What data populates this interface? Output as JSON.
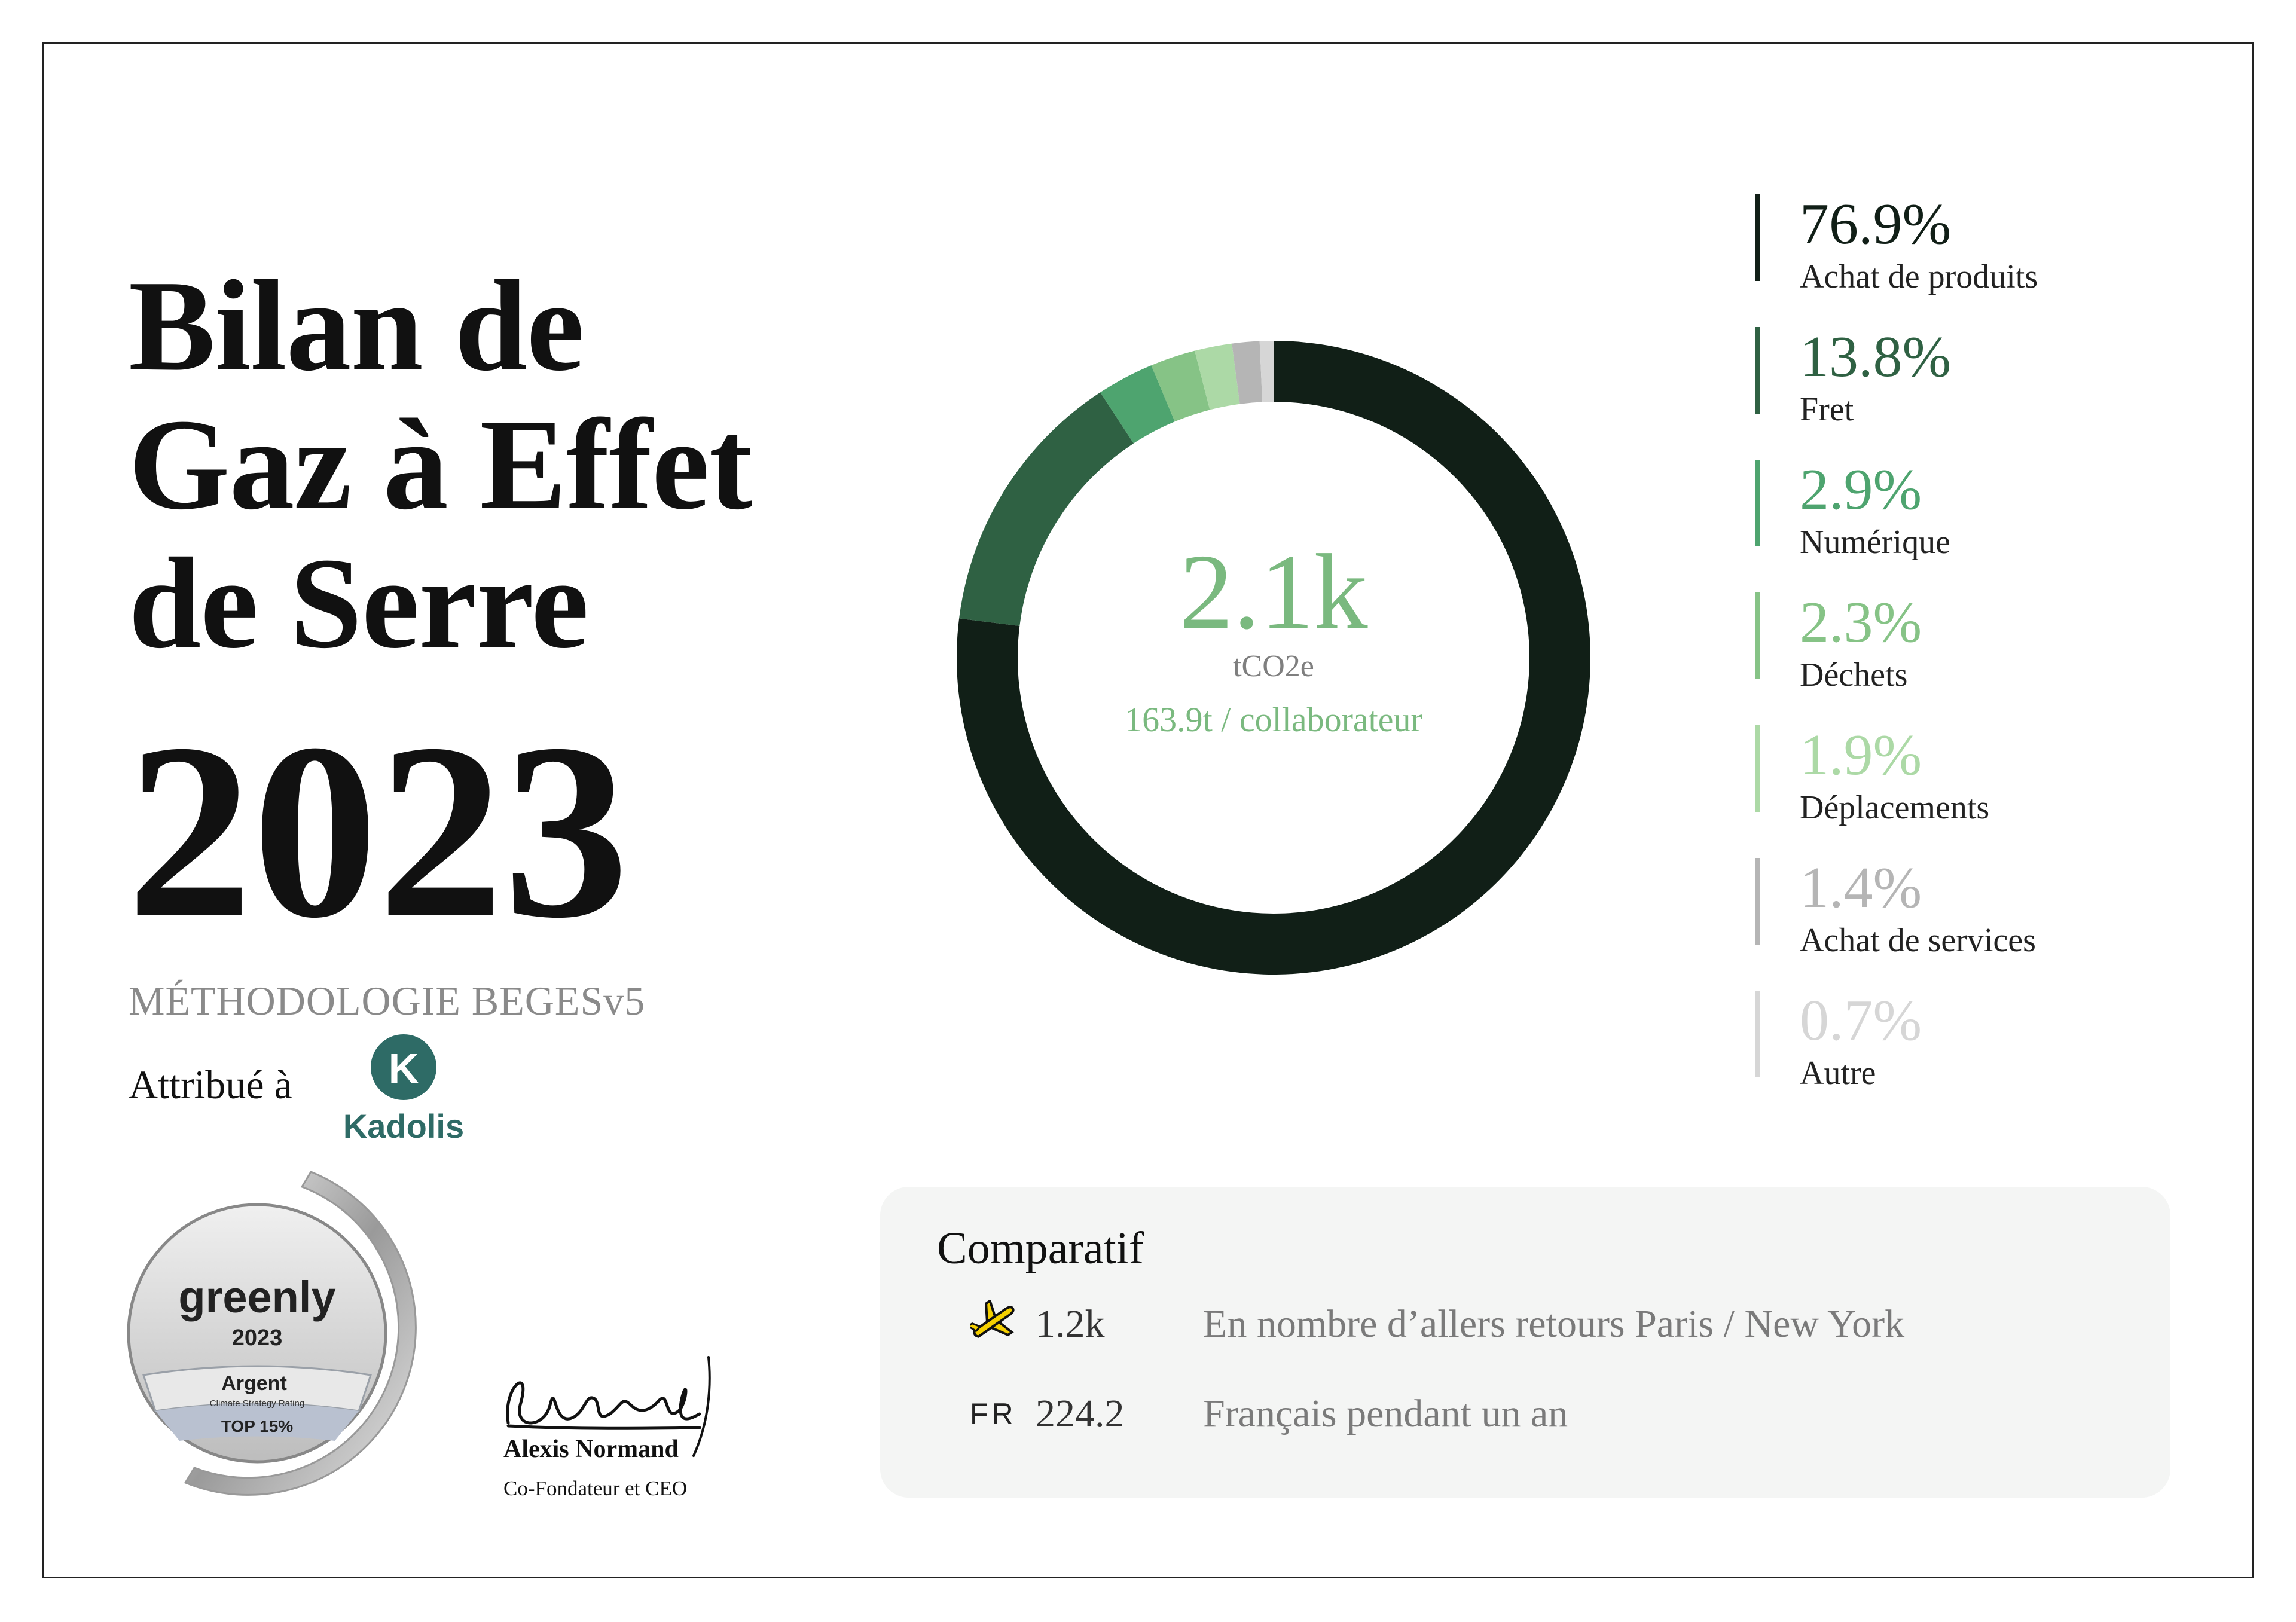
{
  "header": {
    "title_line1": "Bilan de",
    "title_line2": "Gaz à Effet",
    "title_line3": "de Serre",
    "year": "2023",
    "methodology": "MÉTHODOLOGIE BEGESv5",
    "attributed_to": "Attribué à"
  },
  "company": {
    "logo_letter": "K",
    "name": "Kadolis",
    "color": "#2e6b66"
  },
  "badge": {
    "brand": "greenly",
    "year": "2023",
    "level": "Argent",
    "subtitle": "Climate Strategy Rating",
    "rank": "TOP 15%"
  },
  "signature": {
    "name": "Alexis Normand",
    "role": "Co-Fondateur et CEO"
  },
  "chart_data": {
    "type": "pie",
    "donut": true,
    "total_label": "2.1k",
    "unit": "tCO2e",
    "per_employee": "163.9t / collaborateur",
    "series": [
      {
        "name": "Achat de produits",
        "value": 76.9,
        "label": "76.9%",
        "color": "#111f17"
      },
      {
        "name": "Fret",
        "value": 13.8,
        "label": "13.8%",
        "color": "#2f6143"
      },
      {
        "name": "Numérique",
        "value": 2.9,
        "label": "2.9%",
        "color": "#4ea46f"
      },
      {
        "name": "Déchets",
        "value": 2.3,
        "label": "2.3%",
        "color": "#86c386"
      },
      {
        "name": "Déplacements",
        "value": 1.9,
        "label": "1.9%",
        "color": "#acd9a6"
      },
      {
        "name": "Achat de services",
        "value": 1.4,
        "label": "1.4%",
        "color": "#b5b5b5"
      },
      {
        "name": "Autre",
        "value": 0.7,
        "label": "0.7%",
        "color": "#d6d6d6"
      }
    ]
  },
  "comparatif": {
    "title": "Comparatif",
    "items": [
      {
        "icon": "airplane-icon",
        "value": "1.2k",
        "description": "En nombre d’allers retours Paris / New York"
      },
      {
        "icon": "fr-flag-text",
        "code": "FR",
        "value": "224.2",
        "description": "Français pendant un an"
      }
    ]
  }
}
